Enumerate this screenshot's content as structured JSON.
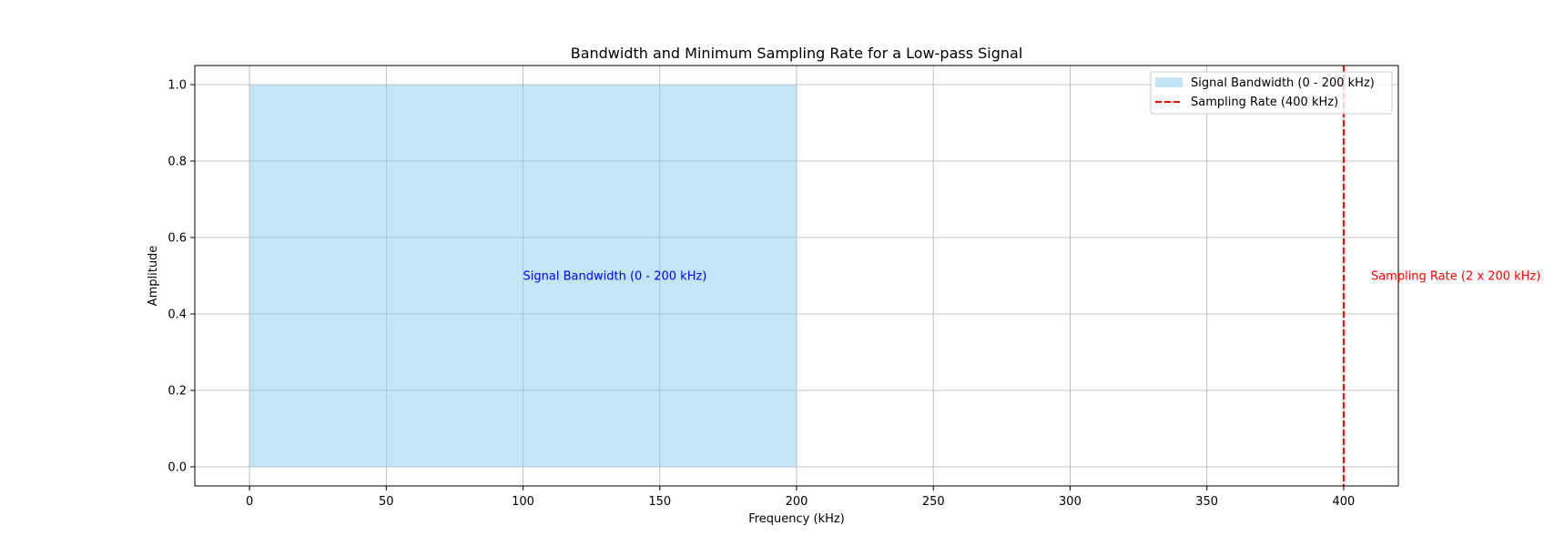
{
  "chart_data": {
    "type": "area",
    "title": "Bandwidth and Minimum Sampling Rate for a Low-pass Signal",
    "xlabel": "Frequency (kHz)",
    "ylabel": "Amplitude",
    "xlim": [
      -20,
      420
    ],
    "ylim": [
      -0.05,
      1.05
    ],
    "xticks": [
      0,
      50,
      100,
      150,
      200,
      250,
      300,
      350,
      400
    ],
    "xtick_labels": [
      "0",
      "50",
      "100",
      "150",
      "200",
      "250",
      "300",
      "350",
      "400"
    ],
    "yticks": [
      0.0,
      0.2,
      0.4,
      0.6,
      0.8,
      1.0
    ],
    "ytick_labels": [
      "0.0",
      "0.2",
      "0.4",
      "0.6",
      "0.8",
      "1.0"
    ],
    "grid": true,
    "legend_position": "top-right",
    "series": [
      {
        "name": "Signal Bandwidth (0 - 200 kHz)",
        "kind": "fill",
        "x": [
          0,
          200
        ],
        "y_low": 0,
        "y_high": 1,
        "color": "#87CEEB"
      },
      {
        "name": "Sampling Rate (400 kHz)",
        "kind": "vline",
        "x": 400,
        "style": "dashed",
        "color": "#ff0000"
      }
    ],
    "annotations": [
      {
        "text": "Signal Bandwidth (0 - 200 kHz)",
        "x": 100,
        "y": 0.5,
        "color": "#0000ff"
      },
      {
        "text": "Sampling Rate (2 x 200 kHz)",
        "x": 410,
        "y": 0.5,
        "color": "#ff0000"
      }
    ]
  }
}
